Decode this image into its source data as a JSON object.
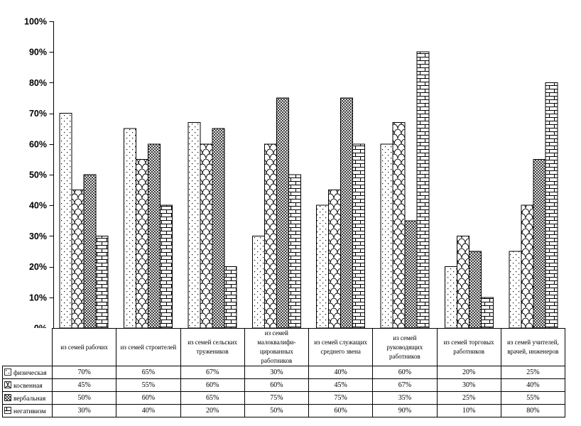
{
  "figure": {
    "background": "#ffffff",
    "ink": "#000000",
    "title": ""
  },
  "chart_data": {
    "type": "bar",
    "title": "",
    "xlabel": "",
    "ylabel": "",
    "grid": false,
    "legend_position": "table-left-column",
    "ylim": [
      0,
      100
    ],
    "ytick_labels": [
      "0%",
      "10%",
      "20%",
      "30%",
      "40%",
      "50%",
      "60%",
      "70%",
      "80%",
      "90%",
      "100%"
    ],
    "value_format": "percent",
    "categories": [
      "из семей рабочих",
      "из семей строителей",
      "из семей сельских тружеников",
      "из семей малоквалифи- цированных работников",
      "из семей служащих среднего звена",
      "из семей руководящих работников",
      "из семей торговых работников",
      "из семей учителей, врачей, инженеров"
    ],
    "series": [
      {
        "name": "физическая",
        "marker": "dotted-pattern",
        "values": [
          70,
          65,
          67,
          30,
          40,
          60,
          20,
          25
        ]
      },
      {
        "name": "косвенная",
        "marker": "fish-scale-pattern",
        "values": [
          45,
          55,
          60,
          60,
          45,
          67,
          30,
          40
        ]
      },
      {
        "name": "вербальная",
        "marker": "diamond-hatch-pattern",
        "values": [
          50,
          60,
          65,
          75,
          75,
          35,
          25,
          55
        ]
      },
      {
        "name": "негативизм",
        "marker": "brick-pattern",
        "values": [
          30,
          40,
          20,
          50,
          60,
          90,
          10,
          80
        ]
      }
    ]
  },
  "table": {
    "corner_label": "",
    "rows": [
      {
        "cells": [
          "70%",
          "65%",
          "67%",
          "30%",
          "40%",
          "60%",
          "20%",
          "25%"
        ]
      },
      {
        "cells": [
          "45%",
          "55%",
          "60%",
          "60%",
          "45%",
          "67%",
          "30%",
          "40%"
        ]
      },
      {
        "cells": [
          "50%",
          "60%",
          "65%",
          "75%",
          "75%",
          "35%",
          "25%",
          "55%"
        ]
      },
      {
        "cells": [
          "30%",
          "40%",
          "20%",
          "50%",
          "60%",
          "90%",
          "10%",
          "80%"
        ]
      }
    ]
  }
}
